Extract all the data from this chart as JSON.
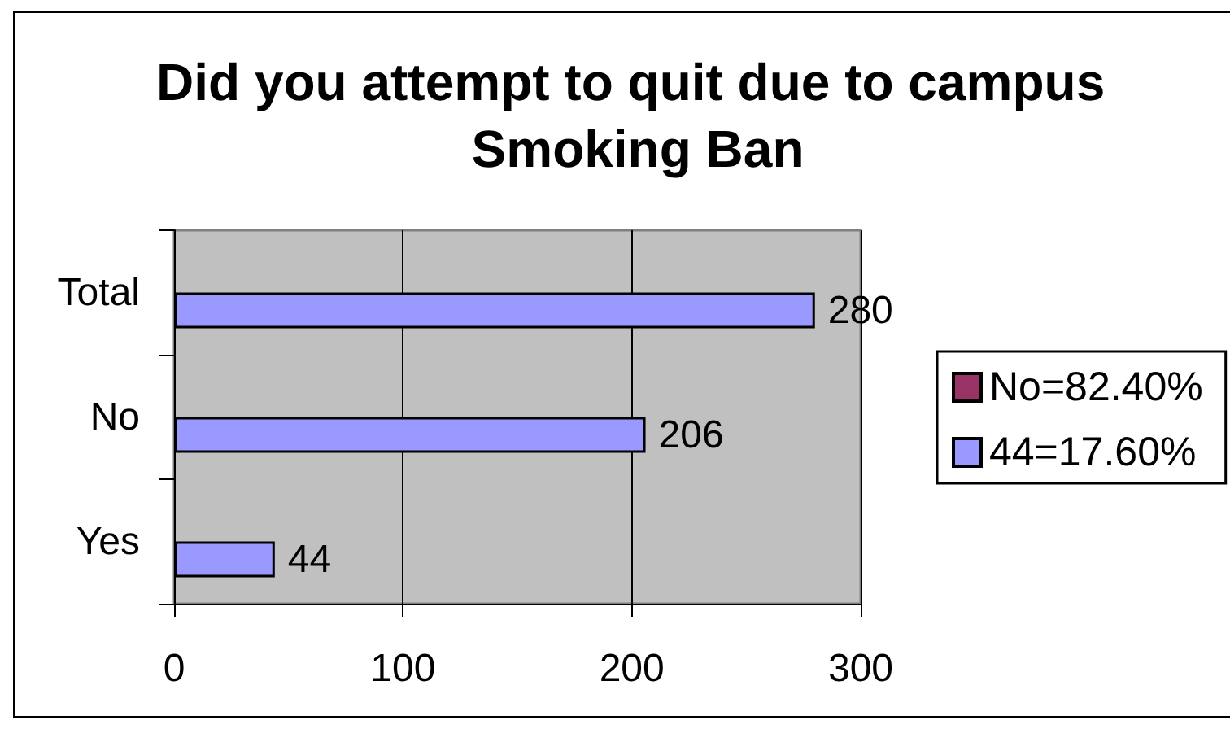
{
  "chart_data": {
    "type": "bar",
    "orientation": "horizontal",
    "title": "Did you attempt to quit due to campus Smoking Ban",
    "categories": [
      "Total",
      "No",
      "Yes"
    ],
    "series": [
      {
        "name": "No=82.40%",
        "color": "#993366",
        "values": [
          null,
          null,
          null
        ]
      },
      {
        "name": "44=17.60%",
        "color": "#9999ff",
        "values": [
          280,
          206,
          44
        ]
      }
    ],
    "xlim": [
      0,
      300
    ],
    "xticks": [
      0,
      100,
      200,
      300
    ],
    "grid": "x",
    "legend": "right",
    "data_labels": true
  }
}
